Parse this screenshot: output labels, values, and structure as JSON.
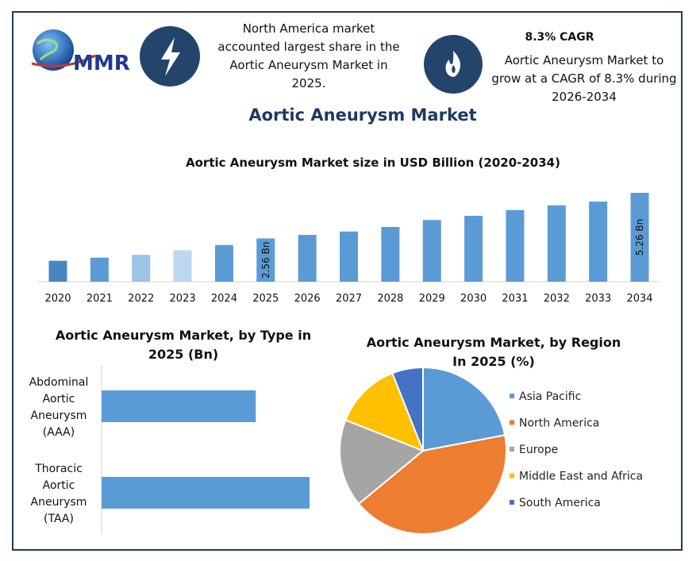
{
  "header": {
    "logo_text": "MMR",
    "highlight": "North America market accounted largest share in the Aortic Aneurysm Market in 2025.",
    "cagr_title": "8.3% CAGR",
    "cagr_text": "Aortic Aneurysm Market to grow at a CAGR of 8.3% during 2026-2034"
  },
  "title": "Aortic Aneurysm Market",
  "chart_data": [
    {
      "type": "bar",
      "title": "Aortic Aneurysm Market size in USD Billion (2020-2034)",
      "categories": [
        "2020",
        "2021",
        "2022",
        "2023",
        "2024",
        "2025",
        "2026",
        "2027",
        "2028",
        "2029",
        "2030",
        "2031",
        "2032",
        "2033",
        "2034"
      ],
      "values": [
        1.24,
        1.42,
        1.59,
        1.86,
        2.17,
        2.56,
        2.77,
        2.97,
        3.24,
        3.65,
        3.9,
        4.24,
        4.52,
        4.74,
        5.26
      ],
      "value_labels": [
        null,
        null,
        null,
        null,
        null,
        "2.56 Bn",
        null,
        null,
        null,
        null,
        null,
        null,
        null,
        null,
        "5.26 Bn"
      ],
      "colors": [
        "#4a86be",
        "#5b9bd5",
        "#9dc3e6",
        "#bdd7ee",
        "#5b9bd5",
        "#5b9bd5",
        "#5b9bd5",
        "#5b9bd5",
        "#5b9bd5",
        "#5b9bd5",
        "#5b9bd5",
        "#5b9bd5",
        "#5b9bd5",
        "#5b9bd5",
        "#5b9bd5"
      ]
    },
    {
      "type": "hbar",
      "title": "Aortic Aneurysm Market, by Type in 2025 (Bn)",
      "categories": [
        "Abdominal Aortic Aneurysm (AAA)",
        "Thoracic Aortic Aneurysm (TAA)"
      ],
      "values": [
        1.09,
        1.47
      ],
      "color": "#5b9bd5"
    },
    {
      "type": "pie",
      "title": "Aortic Aneurysm Market, by Region In 2025 (%)",
      "categories": [
        "Asia Pacific",
        "North America",
        "Europe",
        "Middle East and Africa",
        "South America"
      ],
      "values": [
        22,
        42,
        17,
        13,
        6
      ],
      "colors": [
        "#5b9bd5",
        "#ed7d31",
        "#a5a5a5",
        "#ffc000",
        "#4472c4"
      ]
    }
  ]
}
